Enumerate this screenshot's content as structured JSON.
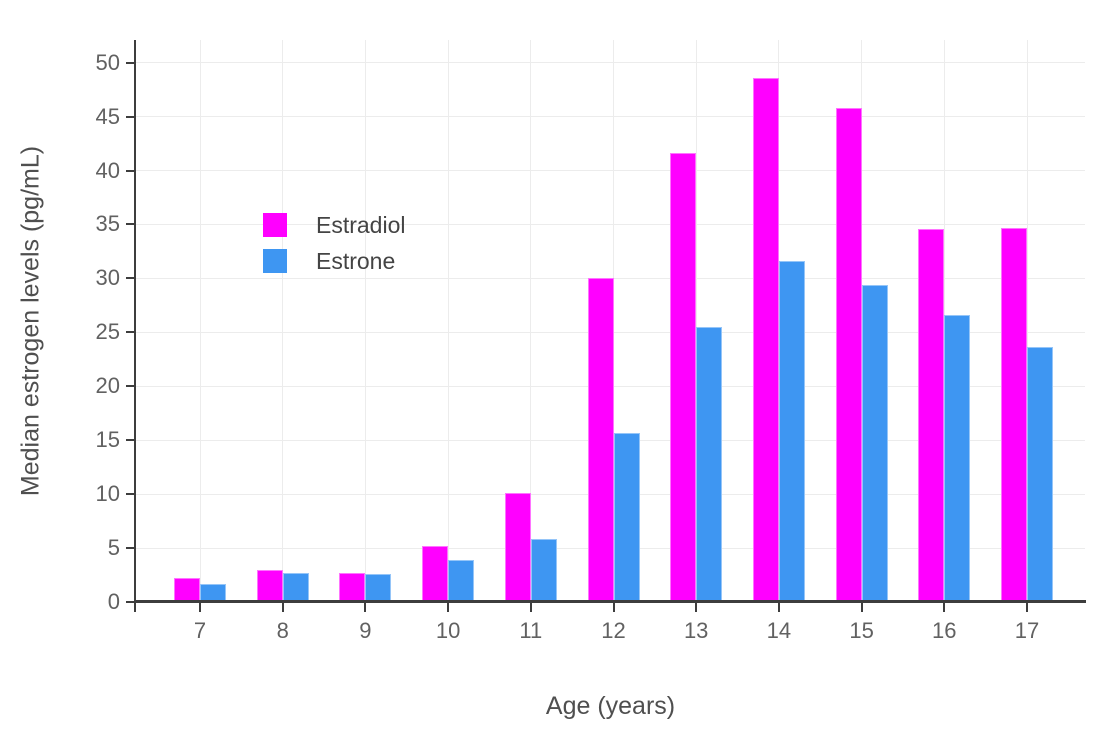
{
  "chart_data": {
    "type": "bar",
    "title": "",
    "xlabel": "Age (years)",
    "ylabel": "Median estrogen levels (pg/mL)",
    "categories": [
      7,
      8,
      9,
      10,
      11,
      12,
      13,
      14,
      15,
      16,
      17
    ],
    "series": [
      {
        "name": "Estradiol",
        "color": "#ff00ff",
        "values": [
          2.2,
          3.0,
          2.7,
          5.2,
          10.1,
          30.0,
          41.6,
          48.6,
          45.8,
          34.6,
          34.7
        ]
      },
      {
        "name": "Estrone",
        "color": "#3e96f2",
        "values": [
          1.7,
          2.7,
          2.6,
          3.9,
          5.8,
          15.7,
          25.5,
          31.6,
          29.4,
          26.6,
          23.6
        ]
      }
    ],
    "ylim": [
      0,
      52.1
    ],
    "yticks": [
      0,
      5,
      10,
      15,
      20,
      25,
      30,
      35,
      40,
      45,
      50
    ],
    "grid": true,
    "legend_position": "inside-top-left"
  },
  "style": {
    "background_color": "#ffffff",
    "axis_color": "#3d3d3d",
    "grid_color": "#ececec",
    "tick_label_color": "#616161",
    "axis_title_color": "#4f4f4f",
    "legend_text_color": "#444444"
  }
}
